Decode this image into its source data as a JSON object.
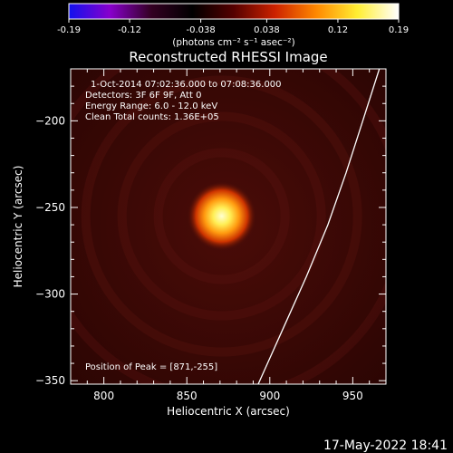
{
  "colorbar": {
    "ticks": [
      "-0.19",
      "-0.12",
      "-0.038",
      "0.038",
      "0.12",
      "0.19"
    ],
    "tick_values": [
      -0.19,
      -0.12,
      -0.038,
      0.038,
      0.12,
      0.19
    ],
    "range": [
      -0.19,
      0.19
    ],
    "colors": [
      "#1111ee",
      "#8800cc",
      "#330022",
      "#000000",
      "#550000",
      "#cc2200",
      "#ff8800",
      "#ffee33",
      "#ffffff"
    ],
    "unit_label": "(photons cm⁻² s⁻¹ asec⁻²)"
  },
  "chart_data": {
    "type": "heatmap",
    "title": "Reconstructed RHESSI Image",
    "xlabel": "Heliocentric X (arcsec)",
    "ylabel": "Heliocentric Y (arcsec)",
    "xlim": [
      780,
      970
    ],
    "ylim": [
      -352,
      -170
    ],
    "x_ticks": [
      800,
      850,
      900,
      950
    ],
    "y_ticks": [
      -200,
      -250,
      -300,
      -350
    ],
    "annotations": [
      "1-Oct-2014 07:02:36.000 to 07:08:36.000",
      "Detectors: 3F 6F 9F, Att 0",
      "Energy Range: 6.0 - 12.0 keV",
      "Clean    Total counts: 1.36E+05"
    ],
    "peak_label": "Position of Peak = [871,-255]",
    "peak": {
      "x": 871,
      "y": -255
    },
    "limb": [
      {
        "x": 893,
        "y": -352
      },
      {
        "x": 908,
        "y": -320
      },
      {
        "x": 922,
        "y": -290
      },
      {
        "x": 935,
        "y": -260
      },
      {
        "x": 946,
        "y": -230
      },
      {
        "x": 956,
        "y": -200
      },
      {
        "x": 966,
        "y": -170
      }
    ],
    "colors": {
      "background": "#3a0806",
      "source_core": "#ffffc0",
      "limb": "#ffffff"
    }
  },
  "footer": {
    "date": "17-May-2022 18:41"
  }
}
